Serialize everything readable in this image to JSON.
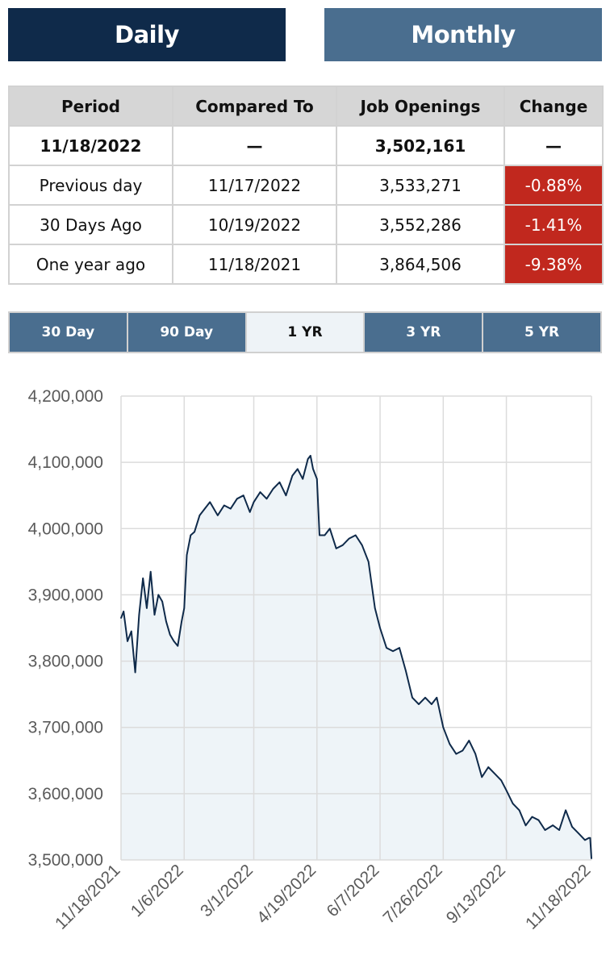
{
  "toggle": {
    "daily": "Daily",
    "monthly": "Monthly",
    "active": "daily"
  },
  "table": {
    "headers": [
      "Period",
      "Compared To",
      "Job Openings",
      "Change"
    ],
    "rows": [
      {
        "period": "11/18/2022",
        "compared": "—",
        "value": "3,502,161",
        "change": "—",
        "bold": true
      },
      {
        "period": "Previous day",
        "compared": "11/17/2022",
        "value": "3,533,271",
        "change": "-0.88%"
      },
      {
        "period": "30 Days Ago",
        "compared": "10/19/2022",
        "value": "3,552,286",
        "change": "-1.41%"
      },
      {
        "period": "One year ago",
        "compared": "11/18/2021",
        "value": "3,864,506",
        "change": "-9.38%"
      }
    ]
  },
  "ranges": [
    "30 Day",
    "90 Day",
    "1 YR",
    "3 YR",
    "5 YR"
  ],
  "active_range": "1 YR",
  "colors": {
    "navy": "#0f2a4a",
    "slate": "#4a6e8f",
    "negative": "#c1281e",
    "area": "#eef4f8",
    "line": "#0f2a4a"
  },
  "chart_data": {
    "type": "area",
    "title": "",
    "xlabel": "",
    "ylabel": "",
    "ylim": [
      3500000,
      4200000
    ],
    "yticks": [
      3500000,
      3600000,
      3700000,
      3800000,
      3900000,
      4000000,
      4100000,
      4200000
    ],
    "ytick_labels": [
      "3,500,000",
      "3,600,000",
      "3,700,000",
      "3,800,000",
      "3,900,000",
      "4,000,000",
      "4,100,000",
      "4,200,000"
    ],
    "xticks": [
      "11/18/2021",
      "1/6/2022",
      "3/1/2022",
      "4/19/2022",
      "6/7/2022",
      "7/26/2022",
      "9/13/2022",
      "11/18/2022"
    ],
    "grid": true,
    "legend": "none",
    "series": [
      {
        "x": [
          "11/18/2021",
          "11/20/2021",
          "11/23/2021",
          "11/26/2021",
          "11/29/2021",
          "12/2/2021",
          "12/5/2021",
          "12/8/2021",
          "12/11/2021",
          "12/14/2021",
          "12/17/2021",
          "12/20/2021",
          "12/23/2021",
          "12/26/2021",
          "12/29/2021",
          "1/1/2022",
          "1/4/2022",
          "1/6/2022",
          "1/8/2022",
          "1/11/2022",
          "1/14/2022",
          "1/18/2022",
          "1/22/2022",
          "1/26/2022",
          "2/1/2022",
          "2/6/2022",
          "2/11/2022",
          "2/16/2022",
          "2/21/2022",
          "2/26/2022",
          "3/1/2022",
          "3/6/2022",
          "3/11/2022",
          "3/16/2022",
          "3/21/2022",
          "3/26/2022",
          "3/31/2022",
          "4/4/2022",
          "4/8/2022",
          "4/12/2022",
          "4/14/2022",
          "4/16/2022",
          "4/19/2022",
          "4/21/2022",
          "4/25/2022",
          "4/29/2022",
          "5/4/2022",
          "5/9/2022",
          "5/14/2022",
          "5/19/2022",
          "5/24/2022",
          "5/29/2022",
          "6/3/2022",
          "6/7/2022",
          "6/12/2022",
          "6/17/2022",
          "6/22/2022",
          "6/27/2022",
          "7/2/2022",
          "7/7/2022",
          "7/12/2022",
          "7/17/2022",
          "7/21/2022",
          "7/26/2022",
          "7/31/2022",
          "8/5/2022",
          "8/10/2022",
          "8/15/2022",
          "8/20/2022",
          "8/25/2022",
          "8/30/2022",
          "9/4/2022",
          "9/9/2022",
          "9/13/2022",
          "9/18/2022",
          "9/23/2022",
          "9/28/2022",
          "10/3/2022",
          "10/8/2022",
          "10/13/2022",
          "10/19/2022",
          "10/24/2022",
          "10/29/2022",
          "11/3/2022",
          "11/8/2022",
          "11/13/2022",
          "11/16/2022",
          "11/17/2022",
          "11/18/2022"
        ],
        "values": [
          3865000,
          3875000,
          3830000,
          3845000,
          3783000,
          3870000,
          3925000,
          3880000,
          3935000,
          3870000,
          3900000,
          3890000,
          3860000,
          3840000,
          3830000,
          3823000,
          3860000,
          3880000,
          3960000,
          3990000,
          3995000,
          4020000,
          4030000,
          4040000,
          4020000,
          4035000,
          4030000,
          4045000,
          4050000,
          4025000,
          4040000,
          4055000,
          4045000,
          4060000,
          4070000,
          4050000,
          4080000,
          4090000,
          4075000,
          4105000,
          4110000,
          4090000,
          4075000,
          3990000,
          3990000,
          4000000,
          3970000,
          3975000,
          3985000,
          3990000,
          3975000,
          3950000,
          3880000,
          3850000,
          3820000,
          3815000,
          3820000,
          3785000,
          3745000,
          3735000,
          3745000,
          3735000,
          3745000,
          3700000,
          3675000,
          3660000,
          3665000,
          3680000,
          3660000,
          3625000,
          3640000,
          3630000,
          3620000,
          3605000,
          3585000,
          3575000,
          3552000,
          3565000,
          3560000,
          3545000,
          3552286,
          3545000,
          3575000,
          3550000,
          3540000,
          3530000,
          3533271,
          3533271,
          3502161
        ]
      }
    ]
  }
}
